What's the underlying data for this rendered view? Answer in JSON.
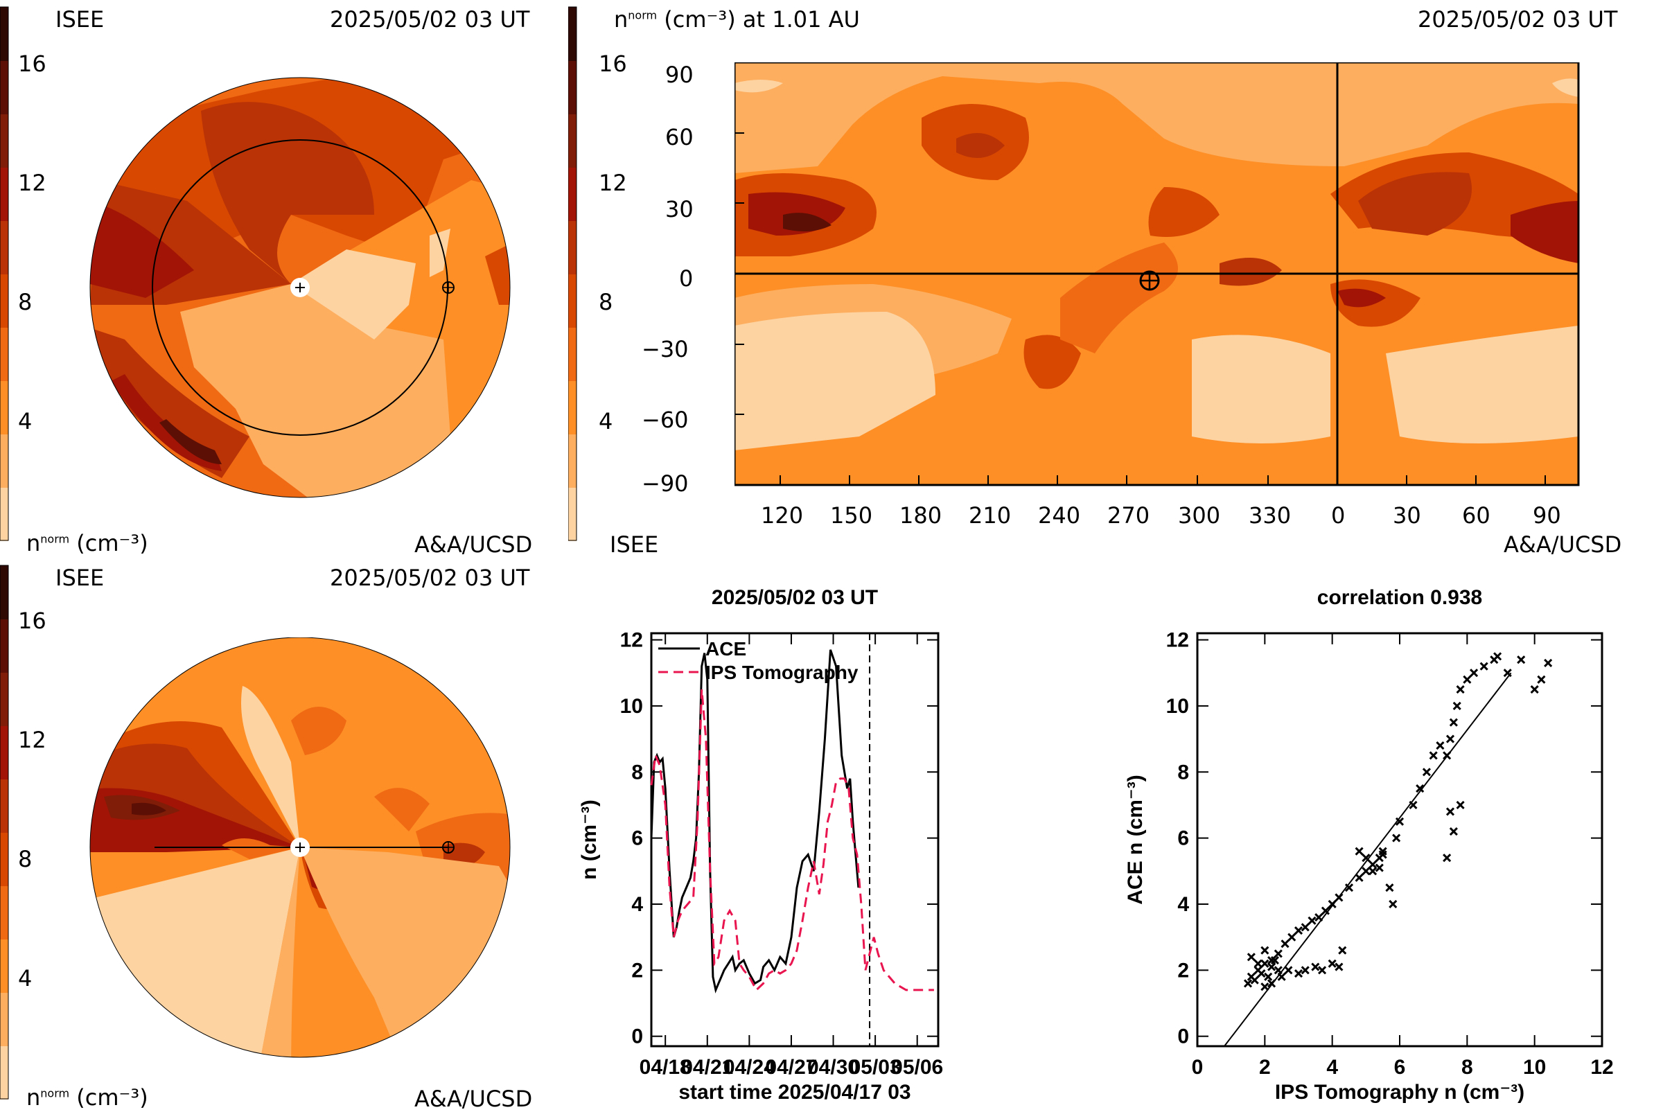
{
  "top_left": {
    "source": "ISEE",
    "datetime": "2025/05/02 03 UT",
    "unit_prefix": "n",
    "unit_sup": "norm",
    "unit_suffix": "(cm⁻³)",
    "credit": "A&A/UCSD"
  },
  "top_right": {
    "title_prefix": "n",
    "title_sup": "norm",
    "title_suffix": "(cm⁻³) at 1.01 AU",
    "datetime": "2025/05/02 03 UT",
    "source": "ISEE",
    "credit": "A&A/UCSD"
  },
  "bottom_left": {
    "source": "ISEE",
    "datetime": "2025/05/02 03 UT",
    "unit_prefix": "n",
    "unit_sup": "norm",
    "unit_suffix": "(cm⁻³)",
    "credit": "A&A/UCSD"
  },
  "colorbar": {
    "ticks": [
      "16",
      "12",
      "8",
      "4"
    ],
    "colors": [
      "#fdd3a2",
      "#fdae5f",
      "#fd8f26",
      "#f06913",
      "#d94801",
      "#b93306",
      "#a21405",
      "#7f1d08",
      "#5c0f05",
      "#2e0904"
    ]
  },
  "chart_data": [
    {
      "type": "line",
      "title": "2025/05/02 03 UT",
      "xlabel": "start time 2025/04/17 03",
      "ylabel": "n (cm⁻³)",
      "xticks": [
        "04/18",
        "04/21",
        "04/24",
        "04/27",
        "04/30",
        "05/03",
        "05/06"
      ],
      "yticks": [
        "0",
        "2",
        "4",
        "6",
        "8",
        "10",
        "12"
      ],
      "xlim": [
        0,
        20.5
      ],
      "ylim": [
        -0.3,
        12.2
      ],
      "now_marker_day": 15.6,
      "series": [
        {
          "name": "ACE",
          "color": "#000000",
          "dash": "none",
          "x": [
            0,
            0.2,
            0.4,
            0.6,
            0.8,
            1.0,
            1.3,
            1.6,
            1.8,
            2.0,
            2.2,
            2.5,
            2.8,
            3.0,
            3.2,
            3.4,
            3.6,
            3.8,
            4.0,
            4.2,
            4.4,
            4.6,
            4.8,
            5.0,
            5.2,
            5.5,
            5.8,
            6.0,
            6.3,
            6.6,
            7.0,
            7.4,
            7.8,
            8.0,
            8.4,
            8.8,
            9.2,
            9.6,
            10.0,
            10.4,
            10.8,
            11.2,
            11.6,
            12.0,
            12.4,
            12.8,
            13.2,
            13.6,
            14.0,
            14.2,
            14.4,
            14.6,
            14.8,
            15.0,
            15.2,
            15.4,
            15.6
          ],
          "y": [
            6.0,
            8.3,
            8.5,
            8.3,
            8.4,
            7.5,
            5.0,
            3.0,
            3.3,
            3.8,
            4.2,
            4.5,
            4.8,
            5.3,
            6.0,
            8.0,
            11.2,
            11.6,
            10.8,
            5.0,
            1.8,
            1.4,
            1.6,
            1.8,
            2.0,
            2.2,
            2.4,
            2.0,
            2.2,
            2.3,
            1.9,
            1.6,
            1.7,
            2.1,
            2.3,
            2.0,
            2.4,
            2.2,
            3.0,
            4.5,
            5.3,
            5.5,
            5.0,
            6.8,
            9.0,
            11.7,
            11.2,
            8.5,
            7.5,
            7.8,
            6.5,
            5.5,
            4.5,
            null,
            null,
            null,
            null
          ]
        },
        {
          "name": "IPS Tomography",
          "color": "#e8154f",
          "dash": "14,8",
          "x": [
            0,
            0.3,
            0.6,
            1.0,
            1.3,
            1.6,
            1.9,
            2.2,
            2.6,
            3.0,
            3.3,
            3.6,
            3.9,
            4.2,
            4.5,
            4.8,
            5.2,
            5.6,
            6.0,
            6.3,
            6.6,
            7.0,
            7.5,
            8.0,
            8.4,
            8.8,
            9.2,
            9.6,
            10.0,
            10.4,
            10.8,
            11.2,
            11.6,
            12.0,
            12.3,
            12.6,
            12.9,
            13.2,
            13.5,
            13.8,
            14.1,
            14.4,
            14.7,
            15.0,
            15.3,
            15.6,
            15.9,
            16.2,
            16.6,
            17.0,
            17.4,
            17.8,
            18.2,
            18.6,
            19.0,
            19.4,
            19.8,
            20.2
          ],
          "y": [
            7.6,
            8.5,
            8.2,
            7.0,
            4.5,
            3.0,
            3.5,
            3.8,
            4.0,
            4.2,
            6.5,
            10.5,
            9.0,
            5.0,
            2.2,
            2.4,
            3.5,
            3.8,
            3.5,
            2.2,
            2.0,
            1.8,
            1.4,
            1.6,
            1.9,
            2.0,
            1.9,
            2.0,
            2.2,
            2.6,
            3.5,
            4.5,
            5.3,
            4.3,
            5.2,
            6.5,
            7.0,
            7.7,
            7.8,
            7.8,
            7.5,
            6.0,
            5.5,
            4.0,
            2.0,
            2.5,
            3.0,
            2.5,
            2.0,
            1.8,
            1.6,
            1.5,
            1.4,
            1.4,
            1.4,
            1.4,
            1.4,
            1.4
          ]
        }
      ]
    },
    {
      "type": "scatter",
      "title": "correlation 0.938",
      "xlabel": "IPS Tomography n (cm⁻³)",
      "ylabel": "ACE n (cm⁻³)",
      "xticks": [
        "0",
        "2",
        "4",
        "6",
        "8",
        "10",
        "12"
      ],
      "yticks": [
        "0",
        "2",
        "4",
        "6",
        "8",
        "10",
        "12"
      ],
      "xlim": [
        0,
        12
      ],
      "ylim": [
        -0.3,
        12.2
      ],
      "fit_line": {
        "x": [
          0.8,
          9.3
        ],
        "y": [
          -0.3,
          11.0
        ]
      },
      "x": [
        1.5,
        1.6,
        1.7,
        1.8,
        1.9,
        2.0,
        2.1,
        2.2,
        2.3,
        2.4,
        1.6,
        1.8,
        2.0,
        2.2,
        2.4,
        2.6,
        2.8,
        3.0,
        3.2,
        3.4,
        3.6,
        3.8,
        4.0,
        4.2,
        2.0,
        2.2,
        2.5,
        2.7,
        3.0,
        3.2,
        3.5,
        3.7,
        4.0,
        4.2,
        4.5,
        4.8,
        5.0,
        5.2,
        5.4,
        5.5,
        4.8,
        5.0,
        5.2,
        5.5,
        5.7,
        5.9,
        6.0,
        6.4,
        6.6,
        6.8,
        7.0,
        7.2,
        7.4,
        7.5,
        7.6,
        7.7,
        7.8,
        8.0,
        8.2,
        8.5,
        8.8,
        8.9,
        9.2,
        9.6,
        10.0,
        10.2,
        10.4,
        7.5,
        7.8,
        7.4,
        7.6,
        5.8,
        5.4,
        4.3
      ],
      "y": [
        1.6,
        1.8,
        1.7,
        2.0,
        1.9,
        2.2,
        1.8,
        2.1,
        2.3,
        2.0,
        2.4,
        2.2,
        2.6,
        2.3,
        2.5,
        2.8,
        3.0,
        3.2,
        3.3,
        3.5,
        3.6,
        3.8,
        4.0,
        4.2,
        1.5,
        1.6,
        1.8,
        2.0,
        1.9,
        2.0,
        2.1,
        2.0,
        2.2,
        2.1,
        4.5,
        4.8,
        5.0,
        5.2,
        5.4,
        5.6,
        5.6,
        5.4,
        5.0,
        5.5,
        4.5,
        6.0,
        6.5,
        7.0,
        7.5,
        8.0,
        8.5,
        8.8,
        8.5,
        9.0,
        9.5,
        10.0,
        10.5,
        10.8,
        11.0,
        11.2,
        11.4,
        11.5,
        11.0,
        11.4,
        10.5,
        10.8,
        11.3,
        6.8,
        7.0,
        5.4,
        6.2,
        4.0,
        5.1,
        2.6
      ]
    }
  ],
  "map": {
    "xticks": [
      "120",
      "150",
      "180",
      "210",
      "240",
      "270",
      "300",
      "330",
      "0",
      "30",
      "60",
      "90"
    ],
    "yticks": [
      "90",
      "60",
      "30",
      "0",
      "−30",
      "−60",
      "−90"
    ]
  }
}
